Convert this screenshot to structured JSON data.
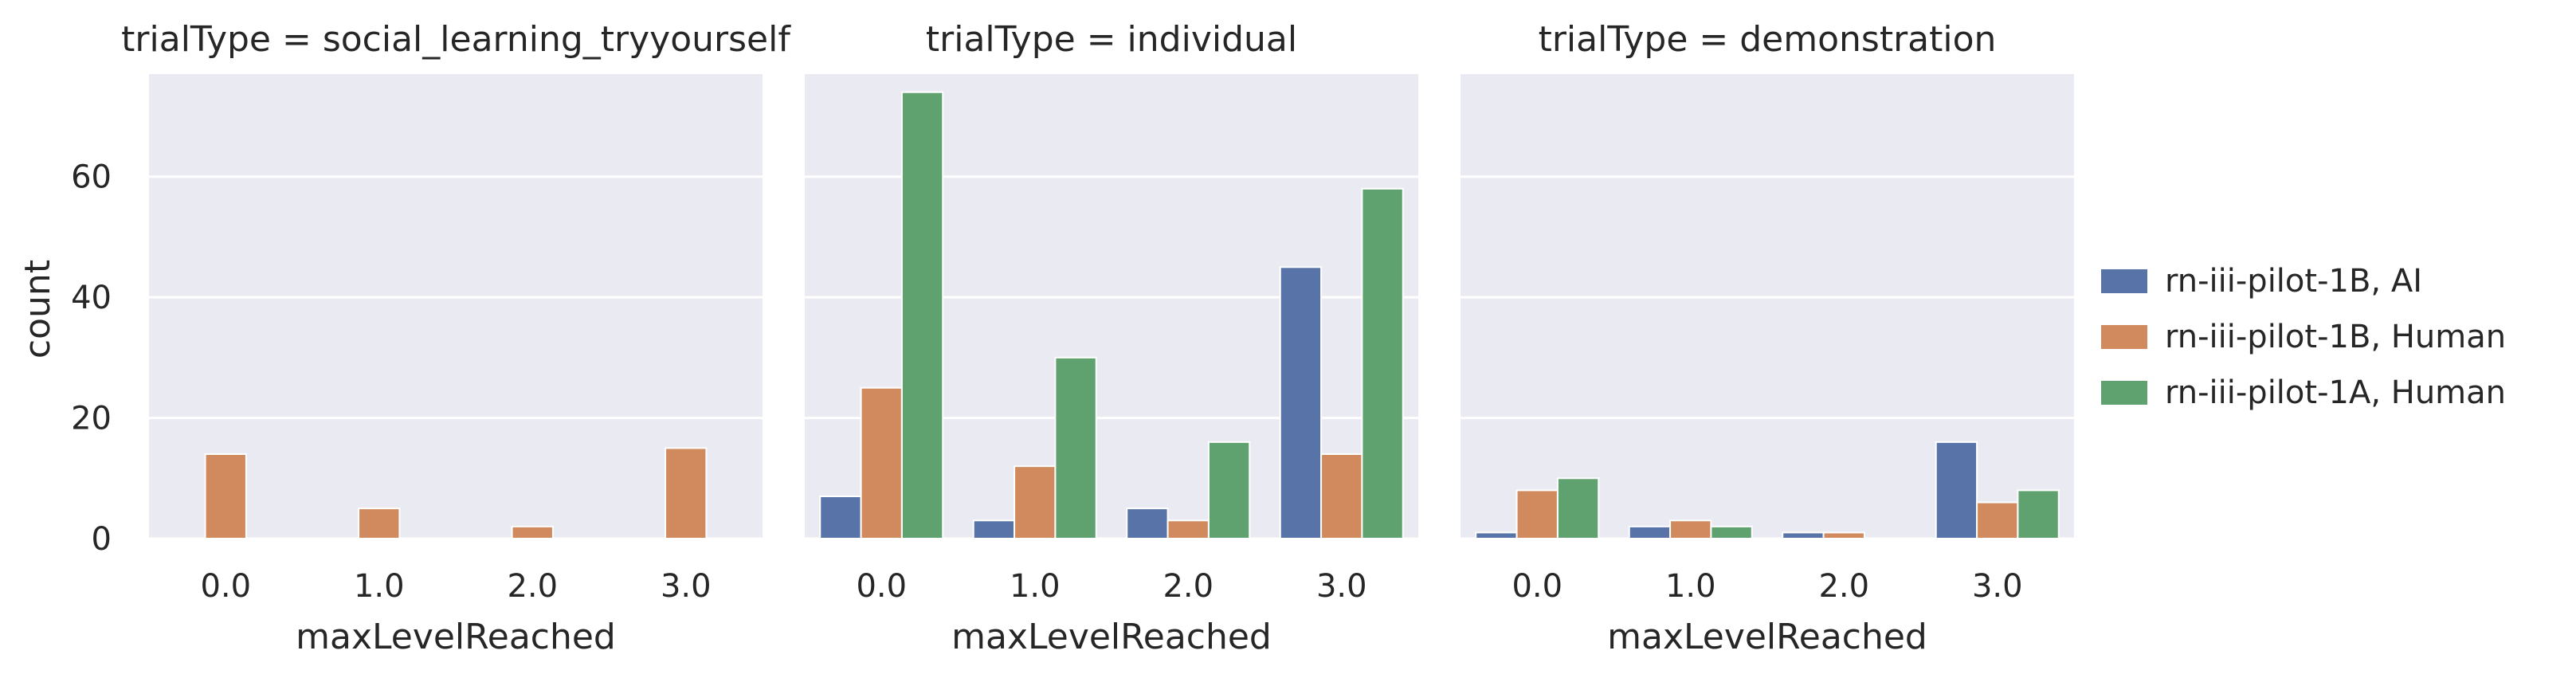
{
  "chart_data": {
    "type": "bar",
    "categories": [
      "0.0",
      "1.0",
      "2.0",
      "3.0"
    ],
    "ylabel": "count",
    "ylim": [
      0,
      77
    ],
    "yticks": [
      0,
      20,
      40,
      60
    ],
    "grid": true,
    "legend_position": "right",
    "series": [
      {
        "name": "rn-iii-pilot-1B, AI",
        "color": "#5873a8"
      },
      {
        "name": "rn-iii-pilot-1B, Human",
        "color": "#d08a5e"
      },
      {
        "name": "rn-iii-pilot-1A, Human",
        "color": "#5fa26f"
      }
    ],
    "panels": [
      {
        "title": "trialType = social_learning_tryyourself",
        "xlabel": "maxLevelReached",
        "values": [
          [
            null,
            null,
            null,
            null
          ],
          [
            14,
            5,
            2,
            15
          ],
          [
            null,
            null,
            null,
            null
          ]
        ]
      },
      {
        "title": "trialType = individual",
        "xlabel": "maxLevelReached",
        "values": [
          [
            7,
            3,
            5,
            45
          ],
          [
            25,
            12,
            3,
            14
          ],
          [
            74,
            30,
            16,
            58
          ]
        ]
      },
      {
        "title": "trialType = demonstration",
        "xlabel": "maxLevelReached",
        "values": [
          [
            1,
            2,
            1,
            16
          ],
          [
            8,
            3,
            1,
            6
          ],
          [
            10,
            2,
            null,
            8
          ]
        ]
      }
    ]
  }
}
